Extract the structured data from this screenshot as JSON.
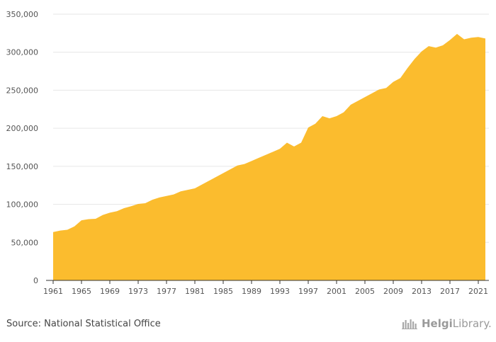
{
  "chart_data": {
    "type": "area",
    "x": [
      1961,
      1962,
      1963,
      1964,
      1965,
      1966,
      1967,
      1968,
      1969,
      1970,
      1971,
      1972,
      1973,
      1974,
      1975,
      1976,
      1977,
      1978,
      1979,
      1980,
      1981,
      1982,
      1983,
      1984,
      1985,
      1986,
      1987,
      1988,
      1989,
      1990,
      1991,
      1992,
      1993,
      1994,
      1995,
      1996,
      1997,
      1998,
      1999,
      2000,
      2001,
      2002,
      2003,
      2004,
      2005,
      2006,
      2007,
      2008,
      2009,
      2010,
      2011,
      2012,
      2013,
      2014,
      2015,
      2016,
      2017,
      2018,
      2019,
      2020,
      2021,
      2022
    ],
    "values": [
      63500,
      65500,
      66500,
      71000,
      79000,
      80500,
      81000,
      86000,
      89000,
      91000,
      95000,
      97500,
      100500,
      101500,
      106000,
      109000,
      111000,
      113000,
      117000,
      119000,
      121000,
      126000,
      131000,
      136000,
      141000,
      146000,
      151000,
      153000,
      157000,
      161000,
      165000,
      169000,
      173000,
      181000,
      176000,
      181000,
      201000,
      206000,
      216000,
      213000,
      216000,
      221000,
      231000,
      236000,
      241000,
      246000,
      251000,
      253000,
      261000,
      266000,
      279000,
      291000,
      301000,
      308000,
      306000,
      309000,
      316000,
      324000,
      317000,
      319000,
      320000,
      318000
    ],
    "xtick_labels": [
      "1961",
      "1965",
      "1969",
      "1973",
      "1977",
      "1981",
      "1985",
      "1989",
      "1993",
      "1997",
      "2001",
      "2005",
      "2009",
      "2013",
      "2017",
      "2021"
    ],
    "ytick_values": [
      0,
      50000,
      100000,
      150000,
      200000,
      250000,
      300000,
      350000
    ],
    "ytick_labels": [
      "0",
      "50,000",
      "100,000",
      "150,000",
      "200,000",
      "250,000",
      "300,000",
      "350,000"
    ],
    "ylim": [
      0,
      350000
    ],
    "xlim": [
      1961,
      2022
    ],
    "grid": true,
    "fill_color": "#FBBC2E",
    "grid_color": "#E6E6E6",
    "axis_color": "#333333"
  },
  "footer": {
    "source": "Source: National Statistical Office",
    "logo_text_a": "Helgi",
    "logo_text_b": "Library."
  }
}
